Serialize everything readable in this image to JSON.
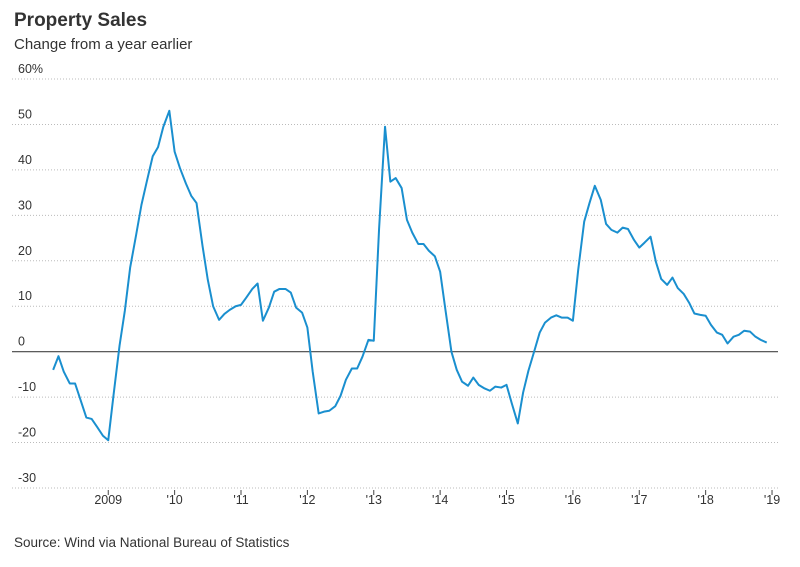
{
  "chart_data": {
    "type": "line",
    "title": "Property Sales",
    "subtitle": "Change from a year earlier",
    "source": "Source: Wind via National Bureau of Statistics",
    "x": [
      2008.17,
      2008.25,
      2008.33,
      2008.42,
      2008.5,
      2008.58,
      2008.67,
      2008.75,
      2008.83,
      2008.92,
      2009,
      2009.08,
      2009.17,
      2009.25,
      2009.33,
      2009.42,
      2009.5,
      2009.58,
      2009.67,
      2009.75,
      2009.83,
      2009.92,
      2010,
      2010.08,
      2010.17,
      2010.25,
      2010.33,
      2010.42,
      2010.5,
      2010.58,
      2010.67,
      2010.75,
      2010.83,
      2010.92,
      2011,
      2011.08,
      2011.17,
      2011.25,
      2011.33,
      2011.42,
      2011.5,
      2011.58,
      2011.67,
      2011.75,
      2011.83,
      2011.92,
      2012,
      2012.08,
      2012.17,
      2012.25,
      2012.33,
      2012.42,
      2012.5,
      2012.58,
      2012.67,
      2012.75,
      2012.83,
      2012.92,
      2013,
      2013.08,
      2013.17,
      2013.25,
      2013.33,
      2013.42,
      2013.5,
      2013.58,
      2013.67,
      2013.75,
      2013.83,
      2013.92,
      2014,
      2014.08,
      2014.17,
      2014.25,
      2014.33,
      2014.42,
      2014.5,
      2014.58,
      2014.67,
      2014.75,
      2014.83,
      2014.92,
      2015,
      2015.08,
      2015.17,
      2015.25,
      2015.33,
      2015.42,
      2015.5,
      2015.58,
      2015.67,
      2015.75,
      2015.83,
      2015.92,
      2016,
      2016.08,
      2016.17,
      2016.25,
      2016.33,
      2016.42,
      2016.5,
      2016.58,
      2016.67,
      2016.75,
      2016.83,
      2016.92,
      2017,
      2017.08,
      2017.17,
      2017.25,
      2017.33,
      2017.42,
      2017.5,
      2017.58,
      2017.67,
      2017.75,
      2017.83,
      2017.92,
      2018,
      2018.08,
      2018.17,
      2018.25,
      2018.33,
      2018.42,
      2018.5,
      2018.58,
      2018.67,
      2018.75,
      2018.83,
      2018.92
    ],
    "series": [
      {
        "color": "#1a8fcf",
        "values": [
          -4,
          -1,
          -4.4,
          -7,
          -7,
          -10.5,
          -14.5,
          -14.8,
          -16.5,
          -18.5,
          -19.5,
          -9.5,
          1.3,
          9,
          18.5,
          25.7,
          32.3,
          37.4,
          43,
          45,
          49.5,
          53,
          44,
          40.4,
          37,
          34.3,
          32.7,
          23.3,
          15.8,
          10,
          7,
          8.3,
          9.2,
          10,
          10.3,
          11.9,
          13.8,
          15,
          6.8,
          9.7,
          13.2,
          13.8,
          13.8,
          13,
          9.7,
          8.6,
          5.3,
          -4.4,
          -13.6,
          -13.2,
          -13,
          -12,
          -9.7,
          -6.2,
          -3.7,
          -3.7,
          -1.1,
          2.6,
          2.4,
          27,
          49.5,
          37.4,
          38.2,
          36,
          29,
          26.2,
          23.7,
          23.7,
          22.2,
          21,
          17.6,
          9.2,
          0,
          -4,
          -6.6,
          -7.5,
          -5.7,
          -7.3,
          -8.1,
          -8.6,
          -7.7,
          -7.9,
          -7.3,
          -11.4,
          -15.8,
          -9,
          -4.2,
          0.2,
          4.2,
          6.4,
          7.5,
          8,
          7.5,
          7.5,
          6.8,
          18,
          28.6,
          32.7,
          36.5,
          33.4,
          28.1,
          26.8,
          26.2,
          27.3,
          27,
          24.6,
          22.9,
          24,
          25.3,
          19.8,
          16,
          14.7,
          16.3,
          14,
          12.7,
          10.8,
          8.4,
          8.1,
          7.9,
          5.9,
          4.2,
          3.7,
          1.8,
          3.3,
          3.7,
          4.6,
          4.4,
          3.3,
          2.6,
          2
        ]
      }
    ],
    "xlim": [
      2007.55,
      2019.09
    ],
    "xticks": [
      2009,
      {
        "value": 2010,
        "label": "'10"
      },
      {
        "value": 2011,
        "label": "'11"
      },
      {
        "value": 2012,
        "label": "'12"
      },
      {
        "value": 2013,
        "label": "'13"
      },
      {
        "value": 2014,
        "label": "'14"
      },
      {
        "value": 2015,
        "label": "'15"
      },
      {
        "value": 2016,
        "label": "'16"
      },
      {
        "value": 2017,
        "label": "'17"
      },
      {
        "value": 2018,
        "label": "'18"
      },
      {
        "value": 2019,
        "label": "'19"
      }
    ],
    "ylim": [
      -30,
      60
    ],
    "yticks": [
      -30,
      -20,
      -10,
      0,
      10,
      20,
      30,
      40,
      50,
      {
        "value": 60,
        "label": "60%"
      }
    ],
    "grid": true
  }
}
